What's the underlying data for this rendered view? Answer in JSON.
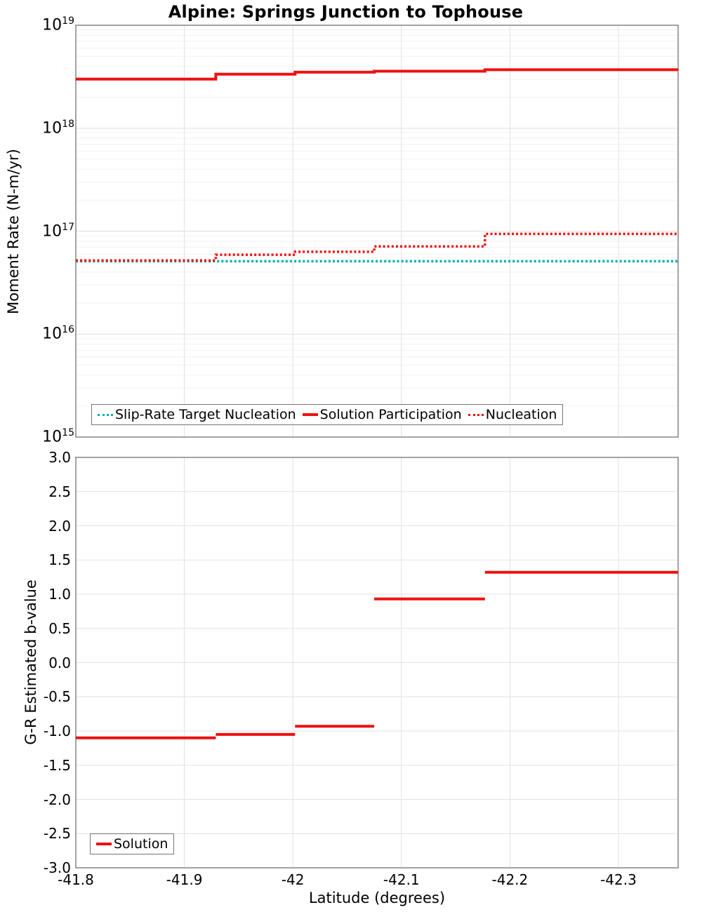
{
  "title": "Alpine: Springs Junction to Tophouse",
  "colors": {
    "red": "#ee1111",
    "cyan": "#00b2b2",
    "grid_major": "#e2e2e2",
    "grid_minor": "#f1f1f1",
    "plot_border": "#8c8c8c",
    "legend_border": "#767676"
  },
  "x_axis": {
    "label": "Latitude (degrees)",
    "range": [
      -41.8,
      -42.355
    ],
    "ticks": [
      -41.8,
      -41.9,
      -42,
      -42.1,
      -42.2,
      -42.3
    ],
    "tick_labels": [
      "-41.8",
      "-41.9",
      "-42",
      "-42.1",
      "-42.2",
      "-42.3"
    ]
  },
  "chart_data": [
    {
      "type": "line",
      "subtype": "step",
      "title": "Alpine: Springs Junction to Tophouse",
      "ylabel": "Moment Rate (N-m/yr)",
      "yscale": "log",
      "ylim": [
        1000000000000000.0,
        1e+19
      ],
      "ytick_exponents": [
        19,
        18,
        17,
        16,
        15
      ],
      "grid": true,
      "legend_position": "bottom-left",
      "connect_steps": true,
      "x_breakpoints": [
        -41.8,
        -41.929,
        -42.002,
        -42.075,
        -42.177,
        -42.355
      ],
      "series": [
        {
          "name": "Slip-Rate Target Nucleation",
          "style": "dotted",
          "color": "#00b2b2",
          "values": [
            5.1e+16,
            5.1e+16,
            5.1e+16,
            5.1e+16,
            5.1e+16
          ]
        },
        {
          "name": "Solution Participation",
          "style": "solid",
          "color": "#ee1111",
          "values": [
            3e+18,
            3.35e+18,
            3.5e+18,
            3.58e+18,
            3.7e+18
          ]
        },
        {
          "name": "Nucleation",
          "style": "dotted",
          "color": "#ee1111",
          "values": [
            5.2e+16,
            5.9e+16,
            6.3e+16,
            7.1e+16,
            9.4e+16
          ]
        }
      ]
    },
    {
      "type": "line",
      "subtype": "step",
      "ylabel": "G-R Estimated b-value",
      "yscale": "linear",
      "ylim": [
        -3.0,
        3.0
      ],
      "ytick_step": 0.5,
      "ytick_labels": [
        "3.0",
        "2.5",
        "2.0",
        "1.5",
        "1.0",
        "0.5",
        "0.0",
        "-0.5",
        "-1.0",
        "-1.5",
        "-2.0",
        "-2.5",
        "-3.0"
      ],
      "grid": true,
      "legend_position": "bottom-left",
      "connect_steps": false,
      "x_breakpoints": [
        -41.8,
        -41.929,
        -42.002,
        -42.075,
        -42.177,
        -42.355
      ],
      "series": [
        {
          "name": "Solution",
          "style": "solid",
          "color": "#ee1111",
          "values": [
            -1.1,
            -1.05,
            -0.93,
            0.93,
            1.32
          ]
        }
      ]
    }
  ]
}
